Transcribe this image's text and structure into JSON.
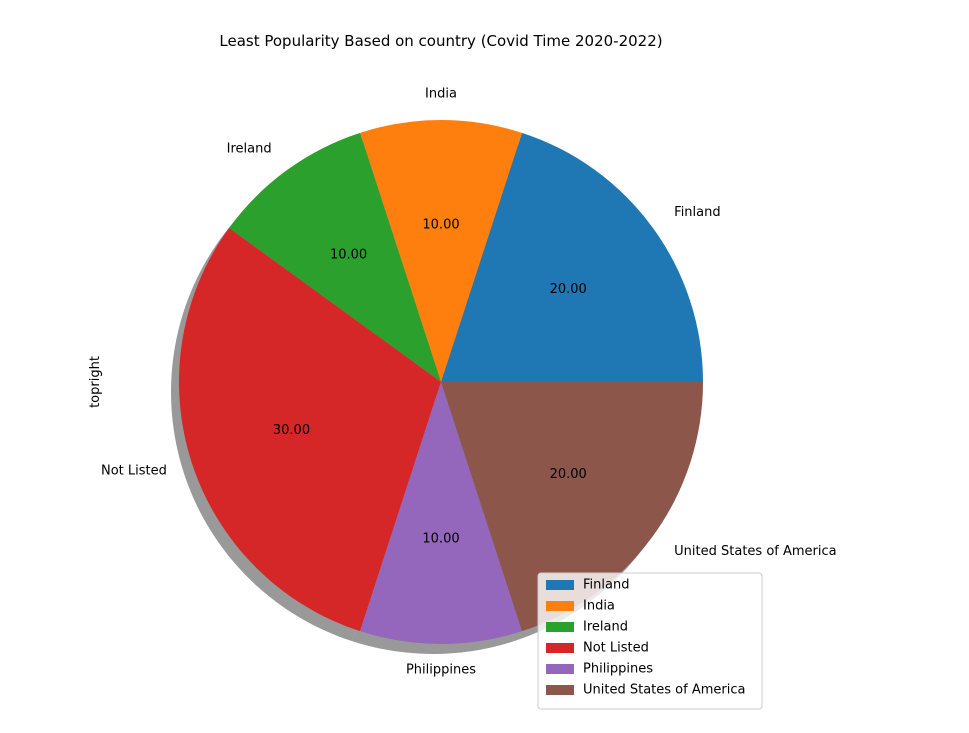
{
  "chart_data": {
    "type": "pie",
    "title": "Least Popularity Based on country (Covid Time 2020-2022)",
    "ylabel": "topright",
    "categories": [
      "Finland",
      "India",
      "Ireland",
      "Not Listed",
      "Philippines",
      "United States of America"
    ],
    "values": [
      20,
      10,
      10,
      30,
      10,
      20
    ],
    "value_labels": [
      "20.00",
      "10.00",
      "10.00",
      "30.00",
      "10.00",
      "20.00"
    ],
    "colors": [
      "#1f77b4",
      "#ff7f0e",
      "#2ca02c",
      "#d62728",
      "#9467bd",
      "#8c564b"
    ],
    "shadow": true,
    "start_angle_deg": 0,
    "direction": "counterclockwise",
    "legend": {
      "placement": "lower-right",
      "entries": [
        "Finland",
        "India",
        "Ireland",
        "Not Listed",
        "Philippines",
        "United States of America"
      ]
    }
  }
}
